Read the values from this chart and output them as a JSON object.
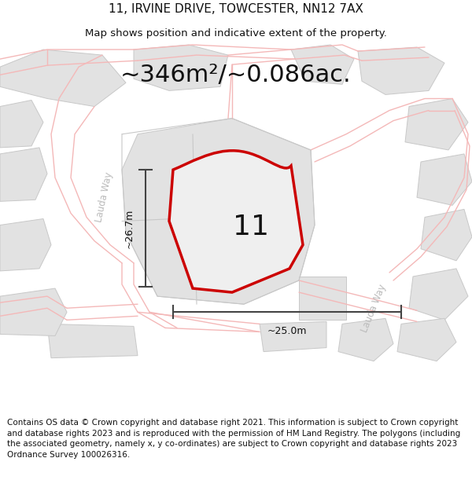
{
  "title_line1": "11, IRVINE DRIVE, TOWCESTER, NN12 7AX",
  "title_line2": "Map shows position and indicative extent of the property.",
  "area_text": "~346m²/~0.086ac.",
  "number_label": "11",
  "dim_vertical": "~26.7m",
  "dim_horizontal": "~25.0m",
  "road_label_1": "Lauda Way",
  "road_label_2": "Lauda Way",
  "footer_text": "Contains OS data © Crown copyright and database right 2021. This information is subject to Crown copyright and database rights 2023 and is reproduced with the permission of HM Land Registry. The polygons (including the associated geometry, namely x, y co-ordinates) are subject to Crown copyright and database rights 2023 Ordnance Survey 100026316.",
  "bg_color": "#ffffff",
  "map_bg": "#f5f5f5",
  "block_color": "#e2e2e2",
  "block_edge_color": "#c8c8c8",
  "road_line_color": "#f4b8b8",
  "road_line_color2": "#c8c8c8",
  "property_outline_color": "#cc0000",
  "property_fill_color": "#efefef",
  "dim_line_color": "#444444",
  "text_color": "#111111",
  "road_text_color": "#bbbbbb",
  "title_fontsize": 11,
  "subtitle_fontsize": 9.5,
  "area_fontsize": 22,
  "number_fontsize": 26,
  "footer_fontsize": 7.5
}
